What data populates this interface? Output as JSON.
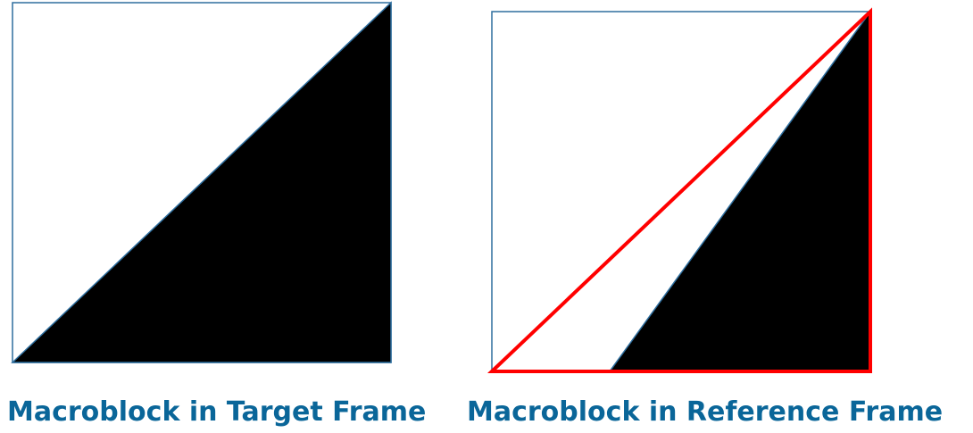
{
  "colors": {
    "frame_border": "#2E6E9E",
    "fill": "#000000",
    "highlight": "#FF0000",
    "caption": "#0A6699",
    "background": "#FFFFFF"
  },
  "panels": {
    "target": {
      "caption": "Macroblock in Target Frame"
    },
    "reference": {
      "caption": "Macroblock in Reference Frame"
    }
  }
}
